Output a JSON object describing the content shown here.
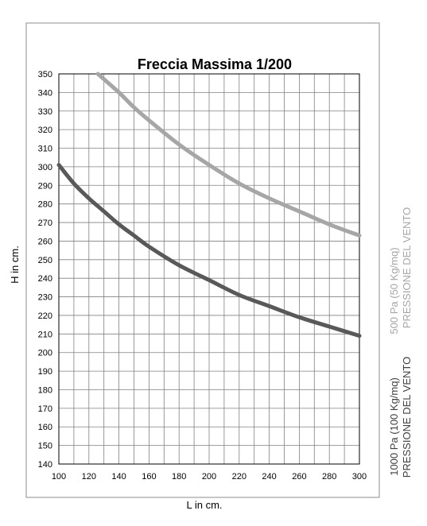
{
  "chart_data": {
    "type": "line",
    "title": "Freccia Massima 1/200",
    "xlabel": "L in cm.",
    "ylabel": "H  in cm.",
    "xlim": [
      100,
      300
    ],
    "ylim": [
      140,
      350
    ],
    "x_ticks": [
      100,
      120,
      140,
      160,
      180,
      200,
      220,
      240,
      260,
      280,
      300
    ],
    "y_ticks": [
      140,
      150,
      160,
      170,
      180,
      190,
      200,
      210,
      220,
      230,
      240,
      250,
      260,
      270,
      280,
      290,
      300,
      310,
      320,
      330,
      340,
      350
    ],
    "grid": true,
    "series": [
      {
        "color": "#a6a6a6",
        "x": [
          126,
          140,
          150,
          160,
          180,
          200,
          220,
          240,
          260,
          280,
          300
        ],
        "y": [
          350,
          340,
          332,
          325,
          312,
          301,
          291,
          283,
          276,
          269,
          263
        ]
      },
      {
        "color": "#595959",
        "x": [
          100,
          110,
          120,
          130,
          140,
          150,
          160,
          180,
          200,
          220,
          240,
          260,
          280,
          300
        ],
        "y": [
          301,
          291,
          283,
          276,
          269,
          263,
          257,
          247,
          239,
          231,
          225,
          219,
          214,
          209
        ]
      }
    ],
    "side_labels": {
      "light": [
        "500 Pa (50 Kg/mq)",
        "PRESSIONE DEL VENTO"
      ],
      "dark": [
        "1000 Pa (100 Kg/mq)",
        "PRESSIONE DEL VENTO"
      ]
    }
  }
}
